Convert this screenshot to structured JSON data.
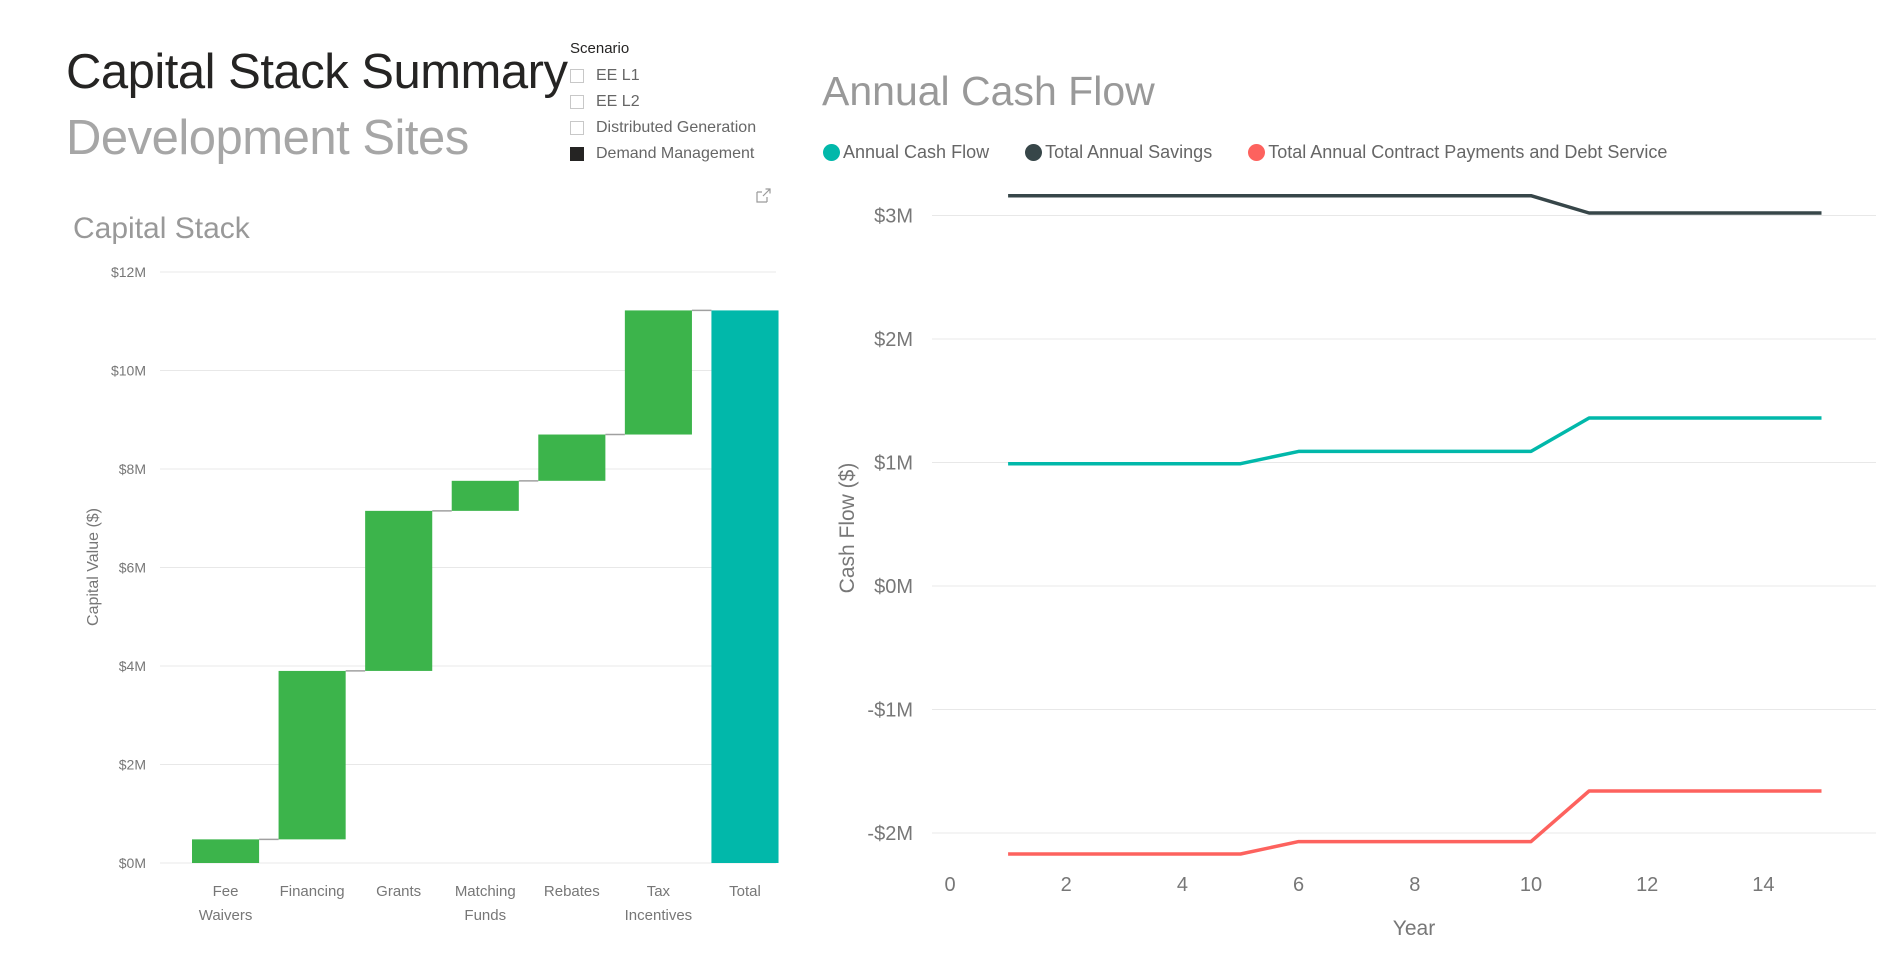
{
  "header": {
    "title": "Capital Stack Summary",
    "subtitle": "Development Sites"
  },
  "slicer": {
    "title": "Scenario",
    "items": [
      {
        "label": "EE L1",
        "checked": false
      },
      {
        "label": "EE L2",
        "checked": false
      },
      {
        "label": "Distributed Generation",
        "checked": false
      },
      {
        "label": "Demand Management",
        "checked": true
      }
    ],
    "focus_icon": "focus-mode-icon"
  },
  "colors": {
    "increase": "#3cb44b",
    "total": "#01b8aa",
    "connector": "#a0a0a0",
    "grid": "#e8e8e8",
    "axis_text": "#777777",
    "annual_cash_flow": "#01b8aa",
    "total_annual_savings": "#374649",
    "total_contract_payments": "#fd625e"
  },
  "chart_data": [
    {
      "type": "bar",
      "subtype": "waterfall",
      "title": "Capital Stack",
      "xlabel": "",
      "ylabel": "Capital Value ($)",
      "ylim": [
        0,
        12
      ],
      "yticks": [
        0,
        2,
        4,
        6,
        8,
        10,
        12
      ],
      "ytick_labels": [
        "$0M",
        "$2M",
        "$4M",
        "$6M",
        "$8M",
        "$10M",
        "$12M"
      ],
      "grid": true,
      "categories": [
        "Fee Waivers",
        "Financing",
        "Grants",
        "Matching Funds",
        "Rebates",
        "Tax Incentives",
        "Total"
      ],
      "category_label_lines": [
        [
          "Fee",
          "Waivers"
        ],
        [
          "Financing"
        ],
        [
          "Grants"
        ],
        [
          "Matching",
          "Funds"
        ],
        [
          "Rebates"
        ],
        [
          "Tax",
          "Incentives"
        ],
        [
          "Total"
        ]
      ],
      "values": [
        0.48,
        3.42,
        3.25,
        0.61,
        0.94,
        2.52,
        11.22
      ],
      "is_total": [
        false,
        false,
        false,
        false,
        false,
        false,
        true
      ],
      "units": "$M"
    },
    {
      "type": "line",
      "title": "Annual Cash Flow",
      "xlabel": "Year",
      "ylabel": "Cash Flow ($)",
      "xlim": [
        0,
        16
      ],
      "xticks": [
        0,
        2,
        4,
        6,
        8,
        10,
        12,
        14
      ],
      "ylim": [
        -2.2,
        3.2
      ],
      "yticks": [
        -2,
        -1,
        0,
        1,
        2,
        3
      ],
      "ytick_labels": [
        "-$2M",
        "-$1M",
        "$0M",
        "$1M",
        "$2M",
        "$3M"
      ],
      "grid": true,
      "legend_position": "top-left",
      "x": [
        1,
        2,
        3,
        4,
        5,
        6,
        7,
        8,
        9,
        10,
        11,
        12,
        13,
        14,
        15
      ],
      "series": [
        {
          "name": "Annual Cash Flow",
          "color": "#01b8aa",
          "values": [
            0.99,
            0.99,
            0.99,
            0.99,
            0.99,
            1.09,
            1.09,
            1.09,
            1.09,
            1.09,
            1.36,
            1.36,
            1.36,
            1.36,
            1.36
          ]
        },
        {
          "name": "Total Annual Savings",
          "color": "#374649",
          "values": [
            3.16,
            3.16,
            3.16,
            3.16,
            3.16,
            3.16,
            3.16,
            3.16,
            3.16,
            3.16,
            3.02,
            3.02,
            3.02,
            3.02,
            3.02
          ]
        },
        {
          "name": "Total Annual Contract Payments and Debt Service",
          "color": "#fd625e",
          "values": [
            -2.17,
            -2.17,
            -2.17,
            -2.17,
            -2.17,
            -2.07,
            -2.07,
            -2.07,
            -2.07,
            -2.07,
            -1.66,
            -1.66,
            -1.66,
            -1.66,
            -1.66
          ]
        }
      ],
      "units": "$M"
    }
  ]
}
